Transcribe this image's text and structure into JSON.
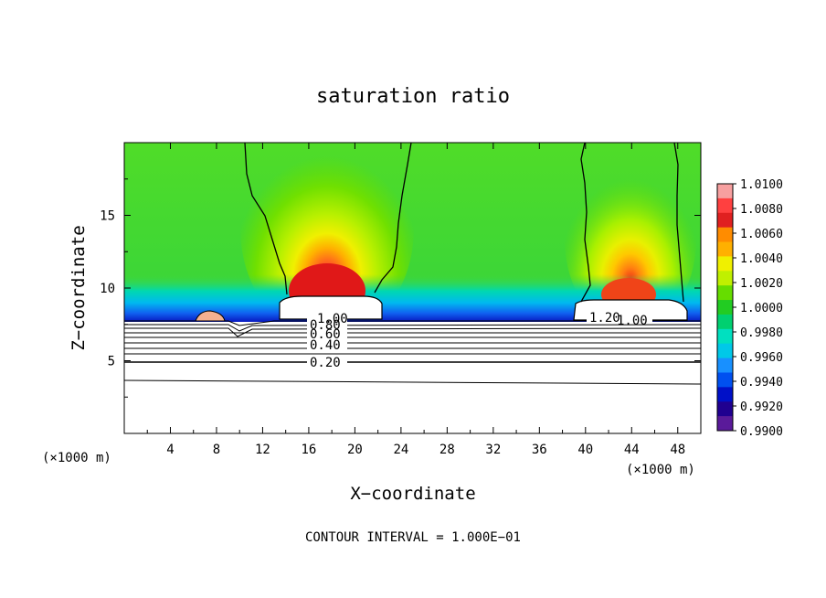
{
  "chart_data": {
    "type": "heatmap",
    "title": "saturation ratio",
    "xlabel": "X−coordinate",
    "ylabel": "Z−coordinate",
    "x_unit_label": "(×1000 m)",
    "x_unit_label_right": "(×1000 m)",
    "xlim": [
      0,
      50
    ],
    "ylim": [
      0,
      20
    ],
    "x_ticks": [
      "4",
      "8",
      "12",
      "16",
      "20",
      "24",
      "28",
      "32",
      "36",
      "40",
      "44",
      "48"
    ],
    "y_ticks": [
      "5",
      "10",
      "15"
    ],
    "colorbar": {
      "labels": [
        "1.0100",
        "1.0080",
        "1.0060",
        "1.0040",
        "1.0020",
        "1.0000",
        "0.9980",
        "0.9960",
        "0.9940",
        "0.9920",
        "0.9900"
      ],
      "colors": [
        "#f7a0a0",
        "#ff4040",
        "#e02020",
        "#ff8c00",
        "#ffb000",
        "#f0f000",
        "#c0f000",
        "#66dd00",
        "#22cc22",
        "#00d070",
        "#00e0c0",
        "#00c8e8",
        "#1890ff",
        "#0050f0",
        "#0010c8",
        "#200090",
        "#5a1a9a"
      ]
    },
    "cloud_peaks": [
      {
        "x": 17.5,
        "z": 9.8,
        "max_value": 1.008
      },
      {
        "x": 44.0,
        "z": 9.8,
        "max_value": 1.006
      }
    ],
    "base_value": 1.0,
    "contour_labels": [
      "0.20",
      "0.40",
      "0.60",
      "0.80",
      "1.00",
      "1.20",
      "1.00"
    ],
    "annotation": "CONTOUR INTERVAL = 1.000E−01"
  }
}
